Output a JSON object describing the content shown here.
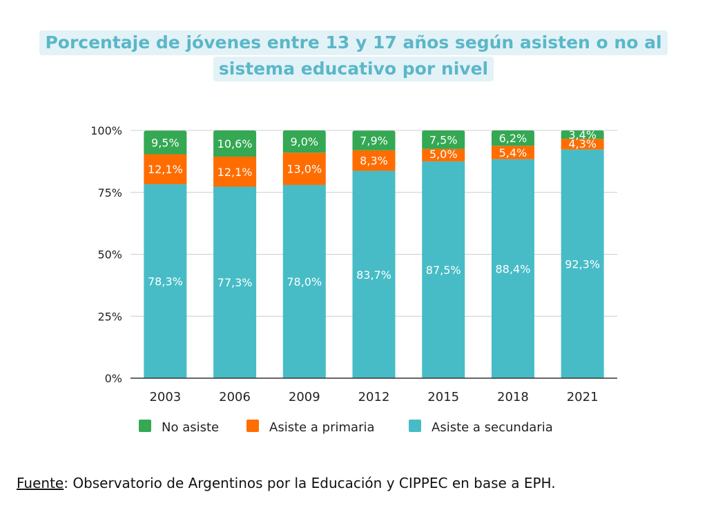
{
  "title": {
    "line1": "Porcentaje de jóvenes entre 13 y 17 años según asisten o no al",
    "line2": "sistema educativo por nivel"
  },
  "source": {
    "label": "Fuente",
    "separator": ":",
    "text": " Observatorio de Argentinos por la Educación y CIPPEC en base a EPH."
  },
  "chart_data": {
    "type": "bar",
    "stacked": true,
    "categories": [
      "2003",
      "2006",
      "2009",
      "2012",
      "2015",
      "2018",
      "2021"
    ],
    "series": [
      {
        "name": "Asiste a secundaria",
        "color": "#47bcc6",
        "values": [
          78.3,
          77.3,
          78.0,
          83.7,
          87.5,
          88.4,
          92.3
        ],
        "labels": [
          "78,3%",
          "77,3%",
          "78,0%",
          "83,7%",
          "87,5%",
          "88,4%",
          "92,3%"
        ]
      },
      {
        "name": "Asiste a primaria",
        "color": "#ff6d01",
        "values": [
          12.1,
          12.1,
          13.0,
          8.3,
          5.0,
          5.4,
          4.3
        ],
        "labels": [
          "12,1%",
          "12,1%",
          "13,0%",
          "8,3%",
          "5,0%",
          "5,4%",
          "4,3%"
        ]
      },
      {
        "name": "No asiste",
        "color": "#34a853",
        "values": [
          9.5,
          10.6,
          9.0,
          7.9,
          7.5,
          6.2,
          3.4
        ],
        "labels": [
          "9,5%",
          "10,6%",
          "9,0%",
          "7,9%",
          "7,5%",
          "6,2%",
          "3,4%"
        ]
      }
    ],
    "legend_order": [
      "No asiste",
      "Asiste a primaria",
      "Asiste a secundaria"
    ],
    "y_ticks": [
      "0%",
      "25%",
      "50%",
      "75%",
      "100%"
    ],
    "ylim": [
      0,
      100
    ],
    "grid": true,
    "legend_position": "bottom",
    "gridline_color": "#cccccc",
    "axis_color": "#333333"
  }
}
